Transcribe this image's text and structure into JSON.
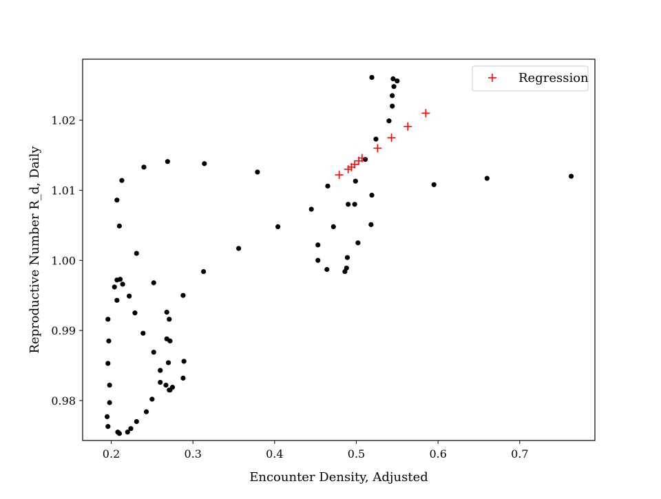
{
  "chart_data": {
    "type": "scatter",
    "title": "",
    "xlabel": "Encounter Density, Adjusted",
    "ylabel": "Reproductive Number R_d, Daily",
    "xlim": [
      0.165,
      0.792
    ],
    "ylim": [
      0.9743,
      1.0287
    ],
    "x_ticks": [
      0.2,
      0.3,
      0.4,
      0.5,
      0.6,
      0.7
    ],
    "x_tick_labels": [
      "0.2",
      "0.3",
      "0.4",
      "0.5",
      "0.6",
      "0.7"
    ],
    "y_ticks": [
      0.98,
      0.99,
      1.0,
      1.01,
      1.02
    ],
    "y_tick_labels": [
      "0.98",
      "0.99",
      "1.00",
      "1.01",
      "1.02"
    ],
    "grid": false,
    "legend_position": "upper right",
    "legend": [
      {
        "label": "Regression",
        "color": "#ff0000",
        "marker": "plus"
      }
    ],
    "series": [
      {
        "marker": "dot",
        "color": "#000000",
        "points": [
          [
            0.195,
            0.9777
          ],
          [
            0.196,
            0.9763
          ],
          [
            0.208,
            0.9755
          ],
          [
            0.21,
            0.9753
          ],
          [
            0.22,
            0.9755
          ],
          [
            0.224,
            0.976
          ],
          [
            0.231,
            0.977
          ],
          [
            0.243,
            0.9784
          ],
          [
            0.25,
            0.9802
          ],
          [
            0.198,
            0.9797
          ],
          [
            0.198,
            0.9822
          ],
          [
            0.196,
            0.9853
          ],
          [
            0.197,
            0.9885
          ],
          [
            0.196,
            0.9916
          ],
          [
            0.207,
            0.9943
          ],
          [
            0.204,
            0.9962
          ],
          [
            0.207,
            0.9972
          ],
          [
            0.211,
            0.9973
          ],
          [
            0.214,
            0.9966
          ],
          [
            0.222,
            0.9949
          ],
          [
            0.229,
            0.9925
          ],
          [
            0.231,
            1.001
          ],
          [
            0.21,
            1.0049
          ],
          [
            0.207,
            1.0086
          ],
          [
            0.213,
            1.0114
          ],
          [
            0.24,
            1.0133
          ],
          [
            0.269,
            1.0141
          ],
          [
            0.314,
            1.0138
          ],
          [
            0.379,
            1.0126
          ],
          [
            0.252,
            0.9968
          ],
          [
            0.239,
            0.9896
          ],
          [
            0.252,
            0.9869
          ],
          [
            0.26,
            0.9843
          ],
          [
            0.26,
            0.9826
          ],
          [
            0.267,
            0.9822
          ],
          [
            0.271,
            0.9815
          ],
          [
            0.272,
            0.9815
          ],
          [
            0.275,
            0.9819
          ],
          [
            0.27,
            0.9854
          ],
          [
            0.268,
            0.9888
          ],
          [
            0.272,
            0.9885
          ],
          [
            0.271,
            0.9916
          ],
          [
            0.268,
            0.9926
          ],
          [
            0.288,
            0.9832
          ],
          [
            0.289,
            0.9856
          ],
          [
            0.288,
            0.995
          ],
          [
            0.313,
            0.9984
          ],
          [
            0.356,
            1.0017
          ],
          [
            0.404,
            1.0048
          ],
          [
            0.445,
            1.0073
          ],
          [
            0.465,
            1.0106
          ],
          [
            0.472,
            1.0048
          ],
          [
            0.453,
            1.0022
          ],
          [
            0.453,
            1.0
          ],
          [
            0.464,
            0.9987
          ],
          [
            0.486,
            0.9984
          ],
          [
            0.488,
            0.9989
          ],
          [
            0.489,
            1.0004
          ],
          [
            0.502,
            1.0025
          ],
          [
            0.49,
            1.008
          ],
          [
            0.498,
            1.008
          ],
          [
            0.499,
            1.0113
          ],
          [
            0.511,
            1.0144
          ],
          [
            0.518,
            1.0051
          ],
          [
            0.519,
            1.0093
          ],
          [
            0.524,
            1.0173
          ],
          [
            0.54,
            1.0199
          ],
          [
            0.544,
            1.022
          ],
          [
            0.544,
            1.0235
          ],
          [
            0.546,
            1.0248
          ],
          [
            0.55,
            1.0256
          ],
          [
            0.545,
            1.0259
          ],
          [
            0.519,
            1.0261
          ],
          [
            0.595,
            1.0108
          ],
          [
            0.66,
            1.0117
          ],
          [
            0.763,
            1.012
          ]
        ]
      },
      {
        "name": "Regression",
        "marker": "plus",
        "color": "#ff0000",
        "points": [
          [
            0.479,
            1.0122
          ],
          [
            0.49,
            1.013
          ],
          [
            0.494,
            1.0133
          ],
          [
            0.498,
            1.0137
          ],
          [
            0.503,
            1.0142
          ],
          [
            0.507,
            1.0146
          ],
          [
            0.526,
            1.016
          ],
          [
            0.543,
            1.0175
          ],
          [
            0.563,
            1.0191
          ],
          [
            0.585,
            1.021
          ]
        ]
      }
    ]
  }
}
